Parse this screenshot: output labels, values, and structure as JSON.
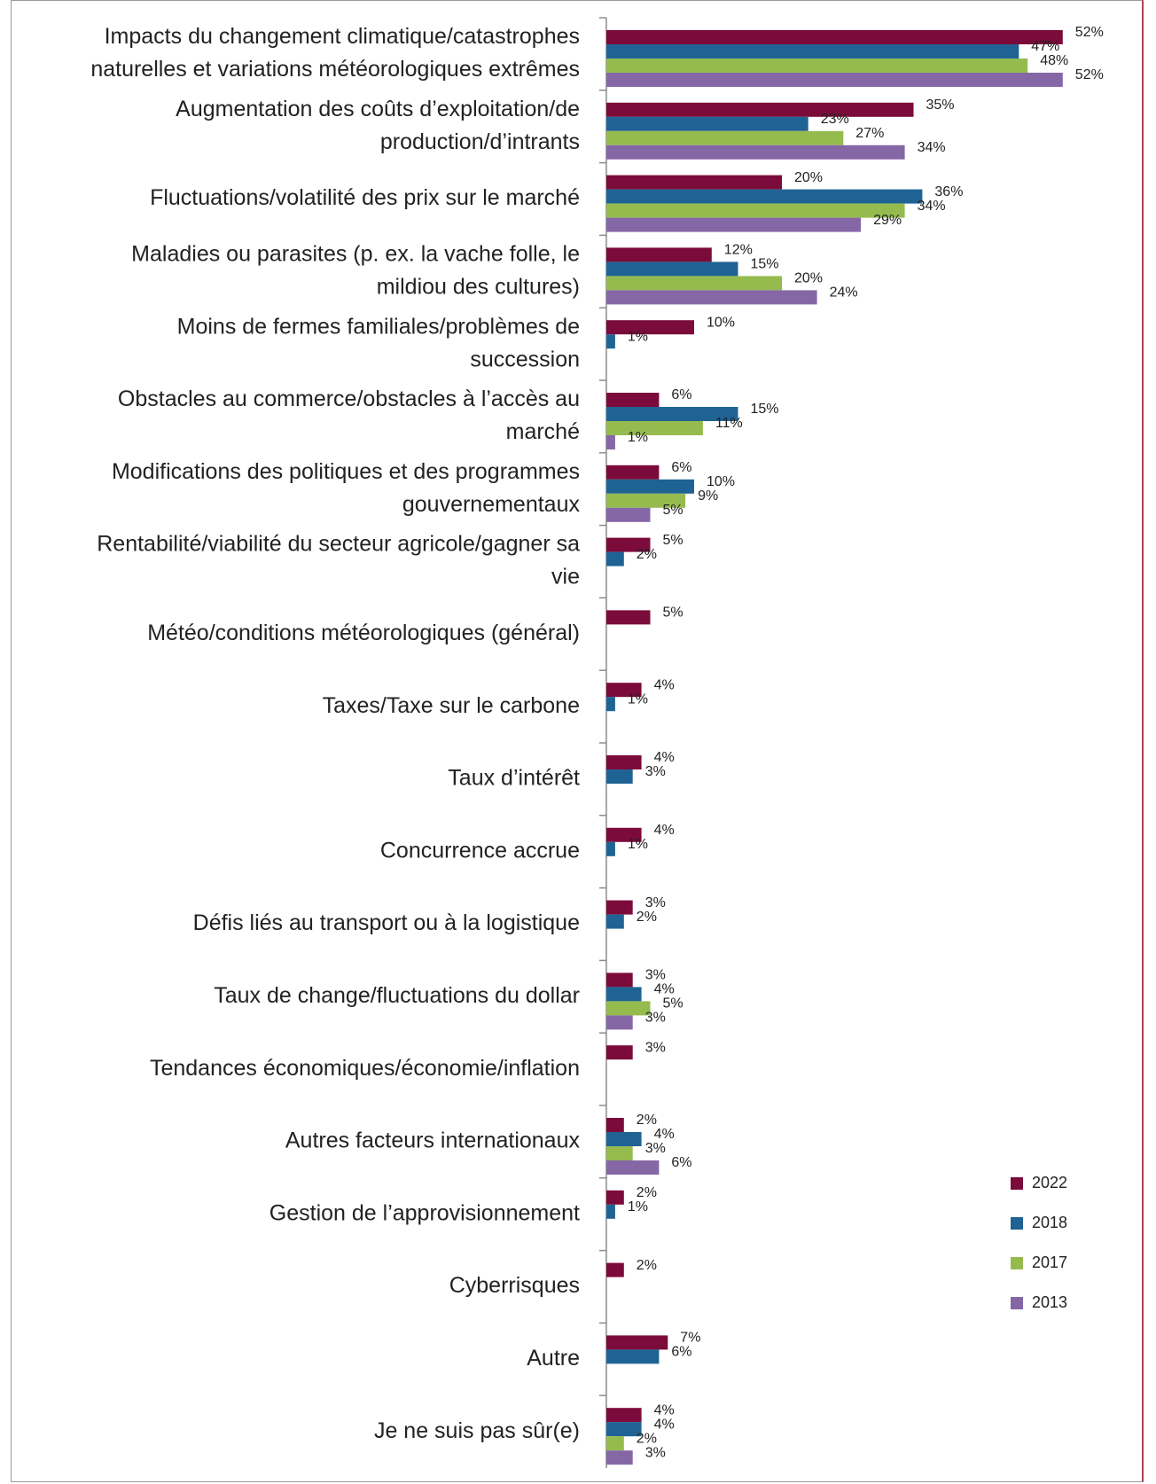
{
  "chart_data": {
    "type": "bar",
    "orientation": "horizontal",
    "title": "",
    "xlabel": "",
    "ylabel": "",
    "xlim": [
      0,
      56
    ],
    "grid": false,
    "legend_position": "bottom-right",
    "unit_suffix": "%",
    "categories": [
      [
        "Impacts du changement climatique/catastrophes",
        "naturelles et variations météorologiques extrêmes"
      ],
      [
        "Augmentation des coûts d’exploitation/de",
        "production/d’intrants"
      ],
      [
        "Fluctuations/volatilité des prix sur le marché"
      ],
      [
        "Maladies ou parasites (p. ex. la vache folle, le",
        "mildiou des cultures)"
      ],
      [
        "Moins de fermes familiales/problèmes de",
        "succession"
      ],
      [
        "Obstacles au commerce/obstacles à l’accès au",
        "marché"
      ],
      [
        "Modifications des politiques et des programmes",
        "gouvernementaux"
      ],
      [
        "Rentabilité/viabilité du secteur agricole/gagner sa",
        "vie"
      ],
      [
        "Météo/conditions météorologiques (général)"
      ],
      [
        "Taxes/Taxe sur le carbone"
      ],
      [
        "Taux d’intérêt"
      ],
      [
        "Concurrence accrue"
      ],
      [
        "Défis liés au transport ou à la logistique"
      ],
      [
        "Taux de change/fluctuations du dollar"
      ],
      [
        "Tendances économiques/économie/inflation"
      ],
      [
        "Autres facteurs internationaux"
      ],
      [
        "Gestion de l’approvisionnement"
      ],
      [
        "Cyberrisques"
      ],
      [
        "Autre"
      ],
      [
        "Je ne suis pas sûr(e)"
      ]
    ],
    "series": [
      {
        "name": "2022",
        "color": "#7b0b3a",
        "values": [
          52,
          35,
          20,
          12,
          10,
          6,
          6,
          5,
          5,
          4,
          4,
          4,
          3,
          3,
          3,
          2,
          2,
          2,
          7,
          4
        ]
      },
      {
        "name": "2018",
        "color": "#1f6394",
        "values": [
          47,
          23,
          36,
          15,
          1,
          15,
          10,
          2,
          null,
          1,
          3,
          1,
          2,
          4,
          null,
          4,
          1,
          null,
          6,
          4
        ]
      },
      {
        "name": "2017",
        "color": "#95bb4f",
        "values": [
          48,
          27,
          34,
          20,
          null,
          11,
          9,
          null,
          null,
          null,
          null,
          null,
          null,
          5,
          null,
          3,
          null,
          null,
          null,
          2
        ]
      },
      {
        "name": "2013",
        "color": "#8567a6",
        "values": [
          52,
          34,
          29,
          24,
          null,
          1,
          5,
          null,
          null,
          null,
          null,
          null,
          null,
          3,
          null,
          6,
          null,
          null,
          null,
          3
        ]
      }
    ]
  }
}
